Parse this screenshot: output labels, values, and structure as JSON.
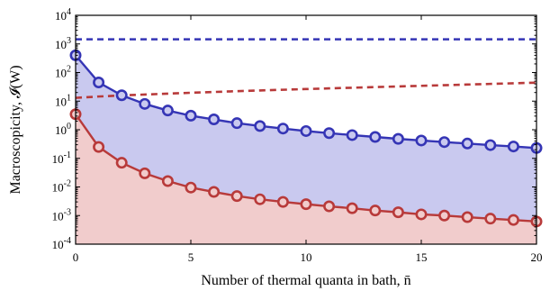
{
  "chart_data": {
    "type": "line",
    "xlabel": "Number of thermal quanta in bath, n̄",
    "ylabel": "Macroscopicity, 𝓘(W)",
    "xlim": [
      0,
      20
    ],
    "ylim": [
      0.0001,
      10000
    ],
    "yscale": "log",
    "grid": false,
    "x_ticks": [
      0,
      5,
      10,
      15,
      20
    ],
    "x_tick_labels": [
      "0",
      "5",
      "10",
      "15",
      "20"
    ],
    "y_ticks": [
      0.0001,
      0.001,
      0.01,
      0.1,
      1,
      10,
      100,
      1000,
      10000
    ],
    "y_tick_labels": [
      {
        "base": "10",
        "exp": "-4"
      },
      {
        "base": "10",
        "exp": "-3"
      },
      {
        "base": "10",
        "exp": "-2"
      },
      {
        "base": "10",
        "exp": "-1"
      },
      {
        "base": "10",
        "exp": "0"
      },
      {
        "base": "10",
        "exp": "1"
      },
      {
        "base": "10",
        "exp": "2"
      },
      {
        "base": "10",
        "exp": "3"
      },
      {
        "base": "10",
        "exp": "4"
      }
    ],
    "x": [
      0,
      1,
      2,
      3,
      4,
      5,
      6,
      7,
      8,
      9,
      10,
      11,
      12,
      13,
      14,
      15,
      16,
      17,
      18,
      19,
      20
    ],
    "series": [
      {
        "style": "markers-line",
        "color": "#3535b5",
        "fill": "#c9c9ef",
        "values": [
          400,
          45,
          16,
          8,
          4.7,
          3.1,
          2.3,
          1.7,
          1.35,
          1.1,
          0.9,
          0.76,
          0.65,
          0.56,
          0.48,
          0.42,
          0.37,
          0.33,
          0.29,
          0.26,
          0.23
        ]
      },
      {
        "style": "markers-line",
        "color": "#b83a3a",
        "fill": "#f1cccc",
        "values": [
          3.5,
          0.25,
          0.07,
          0.03,
          0.016,
          0.0095,
          0.0067,
          0.0048,
          0.0037,
          0.003,
          0.0025,
          0.0021,
          0.0018,
          0.0015,
          0.0013,
          0.0011,
          0.001,
          0.00088,
          0.00078,
          0.0007,
          0.00062
        ]
      },
      {
        "style": "dashed",
        "color": "#3535b5",
        "values": [
          1450,
          1450,
          1450,
          1450,
          1450,
          1450,
          1450,
          1450,
          1450,
          1450,
          1450,
          1450,
          1450,
          1450,
          1450,
          1450,
          1450,
          1450,
          1450,
          1450,
          1450
        ]
      },
      {
        "style": "dashed",
        "color": "#b83a3a",
        "values": [
          13,
          14.5,
          15.8,
          17,
          18.3,
          19.6,
          20.9,
          22.3,
          23.6,
          25,
          26.4,
          27.9,
          29.4,
          31,
          32.6,
          34.3,
          36.1,
          38,
          40,
          42.1,
          44.3
        ]
      }
    ]
  }
}
